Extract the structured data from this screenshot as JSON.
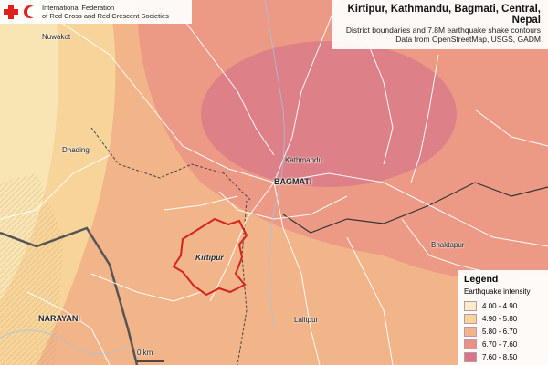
{
  "organization": {
    "line1": "International Federation",
    "line2": "of Red Cross and Red Crescent Societies"
  },
  "title": "Kirtipur, Kathmandu, Bagmati, Central, Nepal",
  "subtitle_lines": [
    "District boundaries and 7.8M earthquake shake contours",
    "Data from OpenStreetMap, USGS, GADM"
  ],
  "legend": {
    "title": "Legend",
    "subtitle": "Earthquake intensity",
    "items": [
      {
        "label": "4.00 - 4.90",
        "color": "#fbeec7"
      },
      {
        "label": "4.90 - 5.80",
        "color": "#f6d49a"
      },
      {
        "label": "5.80 - 6.70",
        "color": "#f2b489"
      },
      {
        "label": "6.70 - 7.60",
        "color": "#ea9186"
      },
      {
        "label": "7.60 - 8.50",
        "color": "#d97588"
      }
    ]
  },
  "place_labels": {
    "nuwakot": "Nuwakot",
    "dhading": "Dhading",
    "kathmandu": "Kathmandu",
    "bagmati": "BAGMATI",
    "kirtipur": "Kirtipur",
    "bhaktapur": "Bhaktapur",
    "lalitpur": "Lalitpur",
    "narayani": "NARAYANI"
  },
  "scale_label": "0 km"
}
